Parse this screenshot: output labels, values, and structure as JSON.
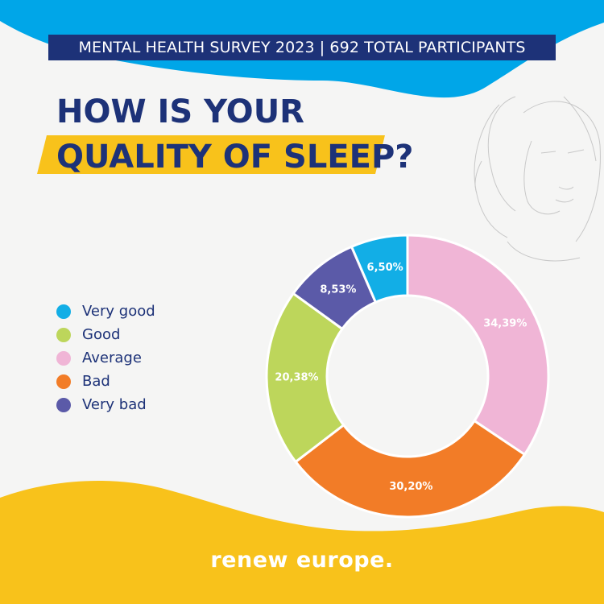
{
  "header": {
    "banner": "MENTAL HEALTH SURVEY 2023 | 692 TOTAL PARTICIPANTS",
    "title_line1": "HOW IS YOUR",
    "title_line2": "QUALITY OF SLEEP?"
  },
  "colors": {
    "navy": "#1d3278",
    "blue": "#00a6e8",
    "yellow": "#f8c21b",
    "very_good": "#12aee6",
    "good": "#bdd65b",
    "average": "#f0b5d6",
    "bad": "#f27c27",
    "very_bad": "#5b5aa8"
  },
  "chart_data": {
    "type": "pie",
    "categories": [
      "Very good",
      "Good",
      "Average",
      "Bad",
      "Very bad"
    ],
    "values": [
      6.5,
      20.38,
      34.39,
      30.2,
      8.53
    ],
    "labels": [
      "6,50%",
      "20,38%",
      "34,39%",
      "30,20%",
      "8,53%"
    ],
    "colors": [
      "#12aee6",
      "#bdd65b",
      "#f0b5d6",
      "#f27c27",
      "#5b5aa8"
    ],
    "drawing_order": [
      "Very good",
      "Average",
      "Bad",
      "Good",
      "Very bad"
    ],
    "legend": "left",
    "donut": true
  },
  "footer": {
    "brand": "renew europe."
  }
}
